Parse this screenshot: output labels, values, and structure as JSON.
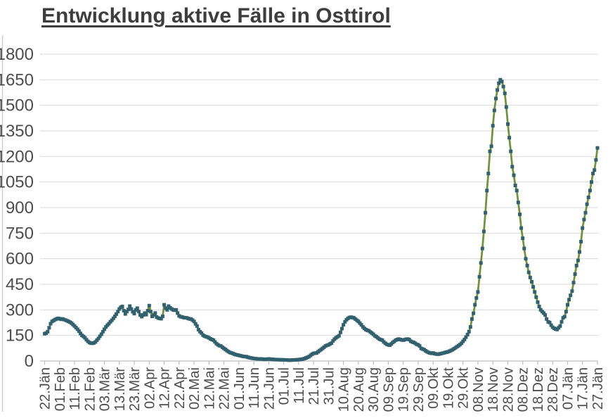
{
  "chart": {
    "title": "Entwicklung aktive Fälle in Osttirol"
  },
  "colors": {
    "marker": "#31606F",
    "line": "#71923C",
    "gridline": "#d9d9d9",
    "axis": "#bfbfbf",
    "label_text": "#4d4d4d",
    "title_text": "#3d3d3d",
    "background": "#ffffff"
  },
  "chart_data": {
    "type": "line",
    "title": "Entwicklung aktive Fälle in Osttirol",
    "series_name": "aktive Fälle",
    "marker_shape": "square",
    "grid": "horizontal",
    "legend_position": "none",
    "x_interval_days": 1,
    "x_tick_every_days": 10,
    "x_tick_labels": [
      "22.Jän",
      "01.Feb",
      "11.Feb",
      "21.Feb",
      "03.Mär",
      "13.Mär",
      "23.Mär",
      "02.Apr",
      "12.Apr",
      "22.Apr",
      "02.Mai",
      "12.Mai",
      "22.Mai",
      "01.Jun",
      "11.Jun",
      "21.Jun",
      "01.Jul",
      "11.Jul",
      "21.Jul",
      "31.Jul",
      "10.Aug",
      "20.Aug",
      "30.Aug",
      "09.Sep",
      "19.Sep",
      "29.Sep",
      "09.Okt",
      "19.Okt",
      "29.Okt",
      "08.Nov",
      "18.Nov",
      "28.Nov",
      "08.Dez",
      "18.Dez",
      "28.Dez",
      "07.Jän",
      "17.Jän",
      "27.Jän"
    ],
    "ylim": [
      0,
      1800
    ],
    "y_ticks": [
      0,
      150,
      300,
      450,
      600,
      750,
      900,
      1050,
      1200,
      1350,
      1500,
      1650,
      1800
    ],
    "values": [
      160,
      163,
      172,
      195,
      219,
      232,
      238,
      243,
      247,
      250,
      248,
      245,
      247,
      243,
      240,
      236,
      232,
      228,
      222,
      214,
      205,
      196,
      186,
      175,
      162,
      150,
      144,
      136,
      125,
      115,
      108,
      105,
      104,
      106,
      112,
      122,
      132,
      145,
      157,
      172,
      186,
      200,
      210,
      219,
      230,
      239,
      250,
      262,
      275,
      290,
      305,
      315,
      320,
      295,
      276,
      290,
      302,
      322,
      305,
      289,
      278,
      300,
      310,
      290,
      270,
      260,
      270,
      281,
      272,
      295,
      325,
      290,
      262,
      270,
      281,
      258,
      252,
      250,
      248,
      262,
      330,
      310,
      300,
      322,
      312,
      305,
      300,
      298,
      300,
      281,
      265,
      260,
      258,
      255,
      254,
      253,
      250,
      247,
      246,
      240,
      232,
      218,
      205,
      184,
      172,
      164,
      152,
      146,
      143,
      140,
      136,
      130,
      126,
      122,
      112,
      102,
      95,
      90,
      88,
      80,
      74,
      68,
      61,
      55,
      50,
      47,
      44,
      40,
      37,
      35,
      33,
      31,
      29,
      27,
      26,
      25,
      22,
      20,
      18,
      16,
      15,
      14,
      13,
      12,
      12,
      12,
      11,
      10,
      10,
      11,
      12,
      11,
      10,
      9,
      9,
      8,
      8,
      8,
      7,
      7,
      7,
      6,
      6,
      5,
      5,
      5,
      6,
      6,
      7,
      7,
      8,
      9,
      10,
      12,
      15,
      18,
      22,
      26,
      33,
      40,
      45,
      46,
      47,
      54,
      61,
      67,
      74,
      81,
      88,
      92,
      95,
      100,
      105,
      118,
      128,
      136,
      142,
      148,
      168,
      190,
      212,
      230,
      242,
      250,
      255,
      257,
      255,
      253,
      246,
      239,
      232,
      222,
      212,
      200,
      191,
      184,
      180,
      177,
      170,
      164,
      157,
      148,
      143,
      136,
      129,
      125,
      122,
      112,
      104,
      98,
      95,
      93,
      100,
      109,
      115,
      122,
      126,
      129,
      126,
      124,
      122,
      125,
      128,
      129,
      126,
      116,
      112,
      109,
      104,
      98,
      95,
      88,
      74,
      70,
      67,
      60,
      54,
      50,
      47,
      45,
      47,
      43,
      41,
      40,
      41,
      43,
      45,
      47,
      50,
      52,
      54,
      58,
      62,
      66,
      72,
      78,
      84,
      90,
      96,
      104,
      115,
      126,
      140,
      155,
      172,
      200,
      246,
      280,
      330,
      370,
      405,
      494,
      575,
      660,
      760,
      870,
      1000,
      1100,
      1230,
      1260,
      1380,
      1470,
      1540,
      1590,
      1630,
      1650,
      1640,
      1610,
      1570,
      1490,
      1390,
      1310,
      1230,
      1140,
      1090,
      1030,
      1000,
      930,
      860,
      780,
      720,
      660,
      600,
      560,
      520,
      490,
      465,
      435,
      405,
      375,
      345,
      320,
      300,
      290,
      281,
      270,
      246,
      230,
      226,
      210,
      198,
      192,
      188,
      185,
      195,
      205,
      230,
      253,
      260,
      290,
      330,
      360,
      385,
      410,
      460,
      510,
      560,
      590,
      640,
      700,
      780,
      830,
      870,
      920,
      960,
      1000,
      1050,
      1100,
      1120,
      1180,
      1250
    ]
  }
}
